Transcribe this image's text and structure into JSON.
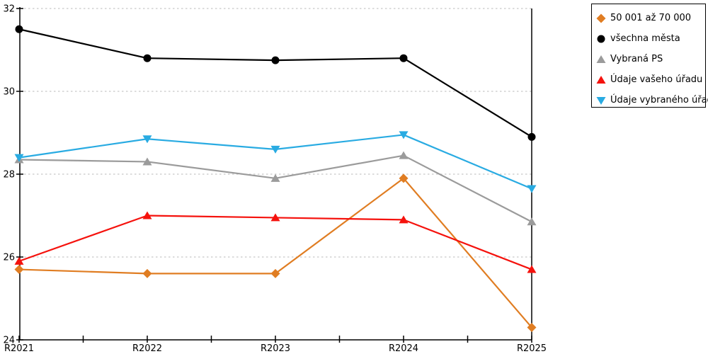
{
  "chart_data": {
    "type": "line",
    "title": "",
    "xlabel": "",
    "ylabel": "",
    "categories": [
      "R2021",
      "R2022",
      "R2023",
      "R2024",
      "R2025"
    ],
    "y_ticks": [
      24,
      26,
      28,
      30,
      32
    ],
    "ylim": [
      24,
      32
    ],
    "grid": "horizontal-dotted",
    "legend_position": "top-right-outside",
    "series": [
      {
        "name": "50 001 až 70 000",
        "marker": "diamond",
        "color": "#E07D22",
        "values": [
          25.7,
          25.6,
          25.6,
          27.9,
          24.3
        ]
      },
      {
        "name": "všechna města",
        "marker": "circle",
        "color": "#000000",
        "values": [
          31.5,
          30.8,
          30.75,
          30.8,
          28.9
        ]
      },
      {
        "name": "Vybraná PS",
        "marker": "triangle-up",
        "color": "#9B9B9B",
        "values": [
          28.35,
          28.3,
          27.9,
          28.45,
          26.85
        ]
      },
      {
        "name": "Údaje vašeho úřadu",
        "marker": "triangle-up",
        "color": "#F5120D",
        "values": [
          25.9,
          27.0,
          26.95,
          26.9,
          25.7
        ]
      },
      {
        "name": "Údaje vybraného úřadu",
        "marker": "triangle-down",
        "color": "#29ABE2",
        "values": [
          28.4,
          28.85,
          28.6,
          28.95,
          27.65
        ]
      }
    ]
  },
  "colors": {
    "background": "#ffffff",
    "axis": "#000000",
    "gridline": "#C8C8C8",
    "legend_border": "#000000",
    "text": "#000000"
  }
}
